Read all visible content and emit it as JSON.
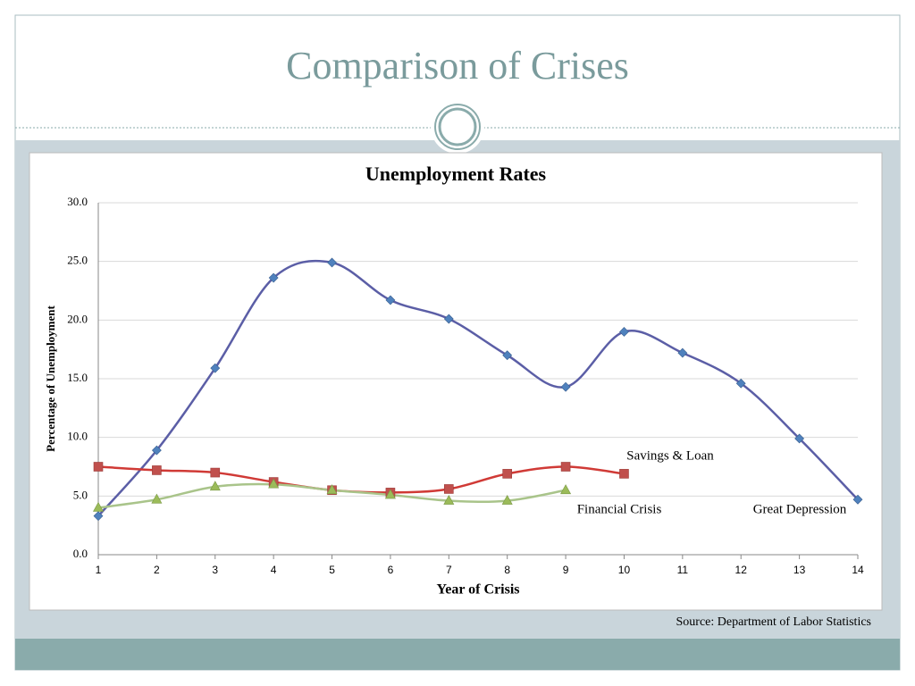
{
  "slide": {
    "title": "Comparison of Crises",
    "source": "Source:  Department of Labor Statistics"
  },
  "chart_data": {
    "type": "line",
    "title": "Unemployment Rates",
    "x_label": "Year of Crisis",
    "y_label": "Percentage of Unemployment",
    "xlim": [
      1,
      14
    ],
    "xticks": [
      1,
      2,
      3,
      4,
      5,
      6,
      7,
      8,
      9,
      10,
      11,
      12,
      13,
      14
    ],
    "ylim": [
      0,
      30
    ],
    "yticks": [
      {
        "value": 0,
        "label": "0.0"
      },
      {
        "value": 5,
        "label": "5.0"
      },
      {
        "value": 10,
        "label": "10.0"
      },
      {
        "value": 15,
        "label": "15.0"
      },
      {
        "value": 20,
        "label": "20.0"
      },
      {
        "value": 25,
        "label": "25.0"
      },
      {
        "value": 30,
        "label": "30.0"
      }
    ],
    "grid": true,
    "smooth": true,
    "series": [
      {
        "name": "Great Depression",
        "color": "#5b5ea6",
        "marker_color": "#4f81bd",
        "marker": "diamond",
        "x": [
          1,
          2,
          3,
          4,
          5,
          6,
          7,
          8,
          9,
          10,
          11,
          12,
          13,
          14
        ],
        "values": [
          3.3,
          8.9,
          15.9,
          23.6,
          24.9,
          21.7,
          20.1,
          17.0,
          14.3,
          19.0,
          17.2,
          14.6,
          9.9,
          4.7
        ]
      },
      {
        "name": "Savings & Loan",
        "color": "#d03a36",
        "marker_color": "#c0504d",
        "marker": "square",
        "x": [
          1,
          2,
          3,
          4,
          5,
          6,
          7,
          8,
          9,
          10
        ],
        "values": [
          7.5,
          7.2,
          7.0,
          6.2,
          5.5,
          5.3,
          5.6,
          6.9,
          7.5,
          6.9
        ]
      },
      {
        "name": "Financial Crisis",
        "color": "#a9c48a",
        "marker_color": "#9bbb59",
        "marker": "triangle",
        "x": [
          1,
          2,
          3,
          4,
          5,
          6,
          7,
          8,
          9
        ],
        "values": [
          4.0,
          4.7,
          5.8,
          6.0,
          5.5,
          5.1,
          4.6,
          4.6,
          5.5
        ]
      }
    ]
  }
}
